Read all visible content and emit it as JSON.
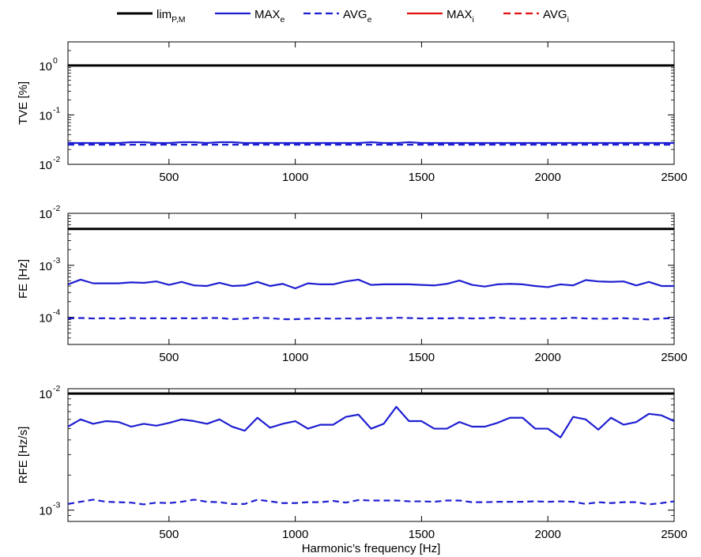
{
  "legend": {
    "entries": [
      {
        "base": "lim",
        "sub": "P,M",
        "color": "#000000",
        "dash": "solid",
        "width": 3
      },
      {
        "base": "MAX",
        "sub": "e",
        "color": "#1f1fd1",
        "dash": "solid",
        "width": 2.2
      },
      {
        "base": "AVG",
        "sub": "e",
        "color": "#1f1fd1",
        "dash": "dashed",
        "width": 2.2
      },
      {
        "base": "MAX",
        "sub": "i",
        "color": "#e01010",
        "dash": "solid",
        "width": 2.2
      },
      {
        "base": "AVG",
        "sub": "i",
        "color": "#e01010",
        "dash": "dashed",
        "width": 2.2
      }
    ],
    "placement": "top"
  },
  "chart_data": [
    {
      "type": "line",
      "ylabel": "TVE [%]",
      "xlabel": "",
      "yscale": "log",
      "xlim": [
        100,
        2500
      ],
      "ylim": [
        0.01,
        3
      ],
      "xticks": [
        500,
        1000,
        1500,
        2000,
        2500
      ],
      "yticks": [
        {
          "value": 0.01,
          "base": "10",
          "exp": "-2"
        },
        {
          "value": 0.1,
          "base": "10",
          "exp": "-1"
        },
        {
          "value": 1,
          "base": "10",
          "exp": "0"
        }
      ],
      "x": [
        100,
        150,
        200,
        250,
        300,
        350,
        400,
        450,
        500,
        550,
        600,
        650,
        700,
        750,
        800,
        850,
        900,
        950,
        1000,
        1050,
        1100,
        1150,
        1200,
        1250,
        1300,
        1350,
        1400,
        1450,
        1500,
        1550,
        1600,
        1650,
        1700,
        1750,
        1800,
        1850,
        1900,
        1950,
        2000,
        2050,
        2100,
        2150,
        2200,
        2250,
        2300,
        2350,
        2400,
        2450,
        2500
      ],
      "series": [
        {
          "color": "#000000",
          "dash": "solid",
          "width": 3,
          "values": [
            1,
            1,
            1,
            1,
            1,
            1,
            1,
            1,
            1,
            1,
            1,
            1,
            1,
            1,
            1,
            1,
            1,
            1,
            1,
            1,
            1,
            1,
            1,
            1,
            1,
            1,
            1,
            1,
            1,
            1,
            1,
            1,
            1,
            1,
            1,
            1,
            1,
            1,
            1,
            1,
            1,
            1,
            1,
            1,
            1,
            1,
            1,
            1,
            1
          ]
        },
        {
          "color": "#1f1fd1",
          "dash": "solid",
          "width": 2.2,
          "values": [
            0.027,
            0.027,
            0.027,
            0.027,
            0.027,
            0.028,
            0.028,
            0.027,
            0.027,
            0.028,
            0.028,
            0.027,
            0.028,
            0.028,
            0.027,
            0.027,
            0.027,
            0.027,
            0.027,
            0.027,
            0.027,
            0.027,
            0.027,
            0.027,
            0.028,
            0.027,
            0.027,
            0.028,
            0.027,
            0.027,
            0.027,
            0.027,
            0.027,
            0.027,
            0.027,
            0.027,
            0.027,
            0.027,
            0.027,
            0.027,
            0.027,
            0.027,
            0.027,
            0.027,
            0.027,
            0.027,
            0.027,
            0.027,
            0.027
          ]
        },
        {
          "color": "#1f1fd1",
          "dash": "dashed",
          "width": 2.2,
          "values": [
            0.025,
            0.025,
            0.025,
            0.025,
            0.025,
            0.025,
            0.025,
            0.025,
            0.025,
            0.025,
            0.025,
            0.025,
            0.025,
            0.025,
            0.025,
            0.025,
            0.025,
            0.025,
            0.025,
            0.025,
            0.025,
            0.025,
            0.025,
            0.025,
            0.025,
            0.025,
            0.025,
            0.025,
            0.025,
            0.025,
            0.025,
            0.025,
            0.025,
            0.025,
            0.025,
            0.025,
            0.025,
            0.025,
            0.025,
            0.025,
            0.025,
            0.025,
            0.025,
            0.025,
            0.025,
            0.025,
            0.025,
            0.025,
            0.025
          ]
        }
      ]
    },
    {
      "type": "line",
      "ylabel": "FE [Hz]",
      "xlabel": "",
      "yscale": "log",
      "xlim": [
        100,
        2500
      ],
      "ylim": [
        3e-05,
        0.01
      ],
      "xticks": [
        500,
        1000,
        1500,
        2000,
        2500
      ],
      "yticks": [
        {
          "value": 0.0001,
          "base": "10",
          "exp": "-4"
        },
        {
          "value": 0.001,
          "base": "10",
          "exp": "-3"
        },
        {
          "value": 0.01,
          "base": "10",
          "exp": "-2"
        }
      ],
      "x": [
        100,
        150,
        200,
        250,
        300,
        350,
        400,
        450,
        500,
        550,
        600,
        650,
        700,
        750,
        800,
        850,
        900,
        950,
        1000,
        1050,
        1100,
        1150,
        1200,
        1250,
        1300,
        1350,
        1400,
        1450,
        1500,
        1550,
        1600,
        1650,
        1700,
        1750,
        1800,
        1850,
        1900,
        1950,
        2000,
        2050,
        2100,
        2150,
        2200,
        2250,
        2300,
        2350,
        2400,
        2450,
        2500
      ],
      "series": [
        {
          "color": "#000000",
          "dash": "solid",
          "width": 3,
          "values": [
            0.005,
            0.005,
            0.005,
            0.005,
            0.005,
            0.005,
            0.005,
            0.005,
            0.005,
            0.005,
            0.005,
            0.005,
            0.005,
            0.005,
            0.005,
            0.005,
            0.005,
            0.005,
            0.005,
            0.005,
            0.005,
            0.005,
            0.005,
            0.005,
            0.005,
            0.005,
            0.005,
            0.005,
            0.005,
            0.005,
            0.005,
            0.005,
            0.005,
            0.005,
            0.005,
            0.005,
            0.005,
            0.005,
            0.005,
            0.005,
            0.005,
            0.005,
            0.005,
            0.005,
            0.005,
            0.005,
            0.005,
            0.005,
            0.005
          ]
        },
        {
          "color": "#1f1fd1",
          "dash": "solid",
          "width": 2.2,
          "values": [
            0.00043,
            0.00053,
            0.00045,
            0.00045,
            0.00045,
            0.00047,
            0.00046,
            0.00049,
            0.00042,
            0.00048,
            0.00041,
            0.0004,
            0.00046,
            0.0004,
            0.00041,
            0.00048,
            0.0004,
            0.00044,
            0.00036,
            0.00045,
            0.00043,
            0.00043,
            0.00049,
            0.00053,
            0.00042,
            0.00043,
            0.00043,
            0.00043,
            0.00042,
            0.00041,
            0.00044,
            0.00051,
            0.00042,
            0.00039,
            0.00043,
            0.00044,
            0.00043,
            0.0004,
            0.00038,
            0.00043,
            0.00041,
            0.00052,
            0.00049,
            0.00048,
            0.00049,
            0.00041,
            0.00048,
            0.0004,
            0.0004
          ]
        },
        {
          "color": "#1f1fd1",
          "dash": "dashed",
          "width": 2.2,
          "values": [
            9.5e-05,
            9.7e-05,
            9.5e-05,
            9.6e-05,
            9.4e-05,
            9.7e-05,
            9.5e-05,
            9.6e-05,
            9.5e-05,
            9.6e-05,
            9.5e-05,
            9.7e-05,
            9.7e-05,
            9.2e-05,
            9.4e-05,
            9.8e-05,
            9.6e-05,
            9.2e-05,
            9.2e-05,
            9.4e-05,
            9.5e-05,
            9.4e-05,
            9.5e-05,
            9.4e-05,
            9.7e-05,
            9.6e-05,
            9.8e-05,
            9.7e-05,
            9.5e-05,
            9.6e-05,
            9.5e-05,
            9.7e-05,
            9.5e-05,
            9.6e-05,
            9.9e-05,
            9.5e-05,
            9.4e-05,
            9.5e-05,
            9.4e-05,
            9.5e-05,
            9.8e-05,
            9.5e-05,
            9.4e-05,
            9.4e-05,
            9.6e-05,
            9.3e-05,
            9.1e-05,
            9.5e-05,
            9.6e-05
          ]
        }
      ]
    },
    {
      "type": "line",
      "ylabel": "RFE [Hz/s]",
      "xlabel": "Harmonic’s frequency [Hz]",
      "yscale": "log",
      "xlim": [
        100,
        2500
      ],
      "ylim": [
        0.0008,
        0.011
      ],
      "xticks": [
        500,
        1000,
        1500,
        2000,
        2500
      ],
      "yticks": [
        {
          "value": 0.001,
          "base": "10",
          "exp": "-3"
        },
        {
          "value": 0.01,
          "base": "10",
          "exp": "-2"
        }
      ],
      "x": [
        100,
        150,
        200,
        250,
        300,
        350,
        400,
        450,
        500,
        550,
        600,
        650,
        700,
        750,
        800,
        850,
        900,
        950,
        1000,
        1050,
        1100,
        1150,
        1200,
        1250,
        1300,
        1350,
        1400,
        1450,
        1500,
        1550,
        1600,
        1650,
        1700,
        1750,
        1800,
        1850,
        1900,
        1950,
        2000,
        2050,
        2100,
        2150,
        2200,
        2250,
        2300,
        2350,
        2400,
        2450,
        2500
      ],
      "series": [
        {
          "color": "#000000",
          "dash": "solid",
          "width": 3,
          "values": [
            0.01,
            0.01,
            0.01,
            0.01,
            0.01,
            0.01,
            0.01,
            0.01,
            0.01,
            0.01,
            0.01,
            0.01,
            0.01,
            0.01,
            0.01,
            0.01,
            0.01,
            0.01,
            0.01,
            0.01,
            0.01,
            0.01,
            0.01,
            0.01,
            0.01,
            0.01,
            0.01,
            0.01,
            0.01,
            0.01,
            0.01,
            0.01,
            0.01,
            0.01,
            0.01,
            0.01,
            0.01,
            0.01,
            0.01,
            0.01,
            0.01,
            0.01,
            0.01,
            0.01,
            0.01,
            0.01,
            0.01,
            0.01,
            0.01
          ]
        },
        {
          "color": "#1f1fd1",
          "dash": "solid",
          "width": 2.2,
          "values": [
            0.0052,
            0.006,
            0.0055,
            0.0058,
            0.0057,
            0.0052,
            0.0055,
            0.0053,
            0.0056,
            0.006,
            0.0058,
            0.0055,
            0.006,
            0.0052,
            0.0048,
            0.0062,
            0.0051,
            0.0055,
            0.0058,
            0.005,
            0.0054,
            0.0054,
            0.0063,
            0.0066,
            0.005,
            0.0055,
            0.0077,
            0.0058,
            0.0058,
            0.005,
            0.005,
            0.0057,
            0.0052,
            0.0052,
            0.0056,
            0.0062,
            0.0062,
            0.005,
            0.005,
            0.0042,
            0.0063,
            0.006,
            0.0049,
            0.0062,
            0.0054,
            0.0057,
            0.0067,
            0.0065,
            0.0058
          ]
        },
        {
          "color": "#1f1fd1",
          "dash": "dashed",
          "width": 2.2,
          "values": [
            0.00113,
            0.00118,
            0.00123,
            0.00118,
            0.00117,
            0.00116,
            0.00112,
            0.00116,
            0.00115,
            0.00118,
            0.00123,
            0.00118,
            0.00117,
            0.00113,
            0.00113,
            0.00123,
            0.00119,
            0.00115,
            0.00115,
            0.00117,
            0.00117,
            0.0012,
            0.00116,
            0.00122,
            0.00121,
            0.00121,
            0.00121,
            0.00119,
            0.00119,
            0.00118,
            0.00121,
            0.00121,
            0.00117,
            0.00117,
            0.00118,
            0.00118,
            0.00118,
            0.00119,
            0.00118,
            0.00119,
            0.00118,
            0.00113,
            0.00117,
            0.00115,
            0.00117,
            0.00117,
            0.00112,
            0.00115,
            0.00119
          ]
        }
      ]
    }
  ]
}
